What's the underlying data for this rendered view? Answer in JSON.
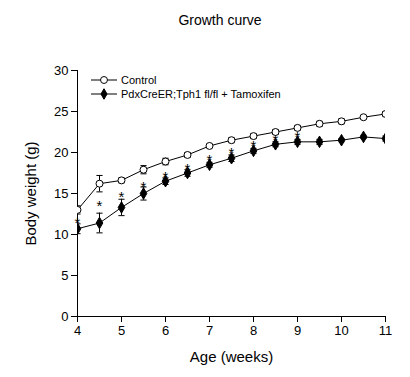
{
  "chart_data": {
    "type": "line",
    "title": "Growth curve",
    "x_label": "Age (weeks)",
    "y_label": "Body weight (g)",
    "x": [
      4,
      4.5,
      5,
      5.5,
      6,
      6.5,
      7,
      7.5,
      8,
      8.5,
      9,
      9.5,
      10,
      10.5,
      11
    ],
    "series": [
      {
        "name": "Control",
        "color": "#000000",
        "marker": "open-circle",
        "values": [
          13.0,
          16.2,
          16.6,
          17.9,
          18.9,
          19.7,
          20.8,
          21.5,
          22.0,
          22.5,
          23.0,
          23.5,
          23.8,
          24.3,
          24.7
        ],
        "errors": [
          0.5,
          1.0,
          0.3,
          0.5,
          0.4,
          0.3,
          0.2,
          0.3,
          0.3,
          0.3,
          0.3,
          0.3,
          0.3,
          0.2,
          0.3
        ]
      },
      {
        "name": "PdxCreER;Tph1 fl/fl + Tamoxifen",
        "color": "#000000",
        "marker": "diamond",
        "values": [
          10.7,
          11.4,
          13.3,
          15.0,
          16.5,
          17.5,
          18.5,
          19.3,
          20.2,
          21.0,
          21.3,
          21.3,
          21.5,
          21.9,
          21.7
        ],
        "errors": [
          0.6,
          1.2,
          1.0,
          0.8,
          0.4,
          0.4,
          0.3,
          0.4,
          0.3,
          0.3,
          0.3,
          0.3,
          0.2,
          0.2,
          0.3
        ]
      }
    ],
    "annotations": [
      {
        "text": "*",
        "x": 4,
        "y": 11.9
      },
      {
        "text": "*",
        "x": 4.5,
        "y": 14.0
      },
      {
        "text": "*",
        "x": 5,
        "y": 15.0
      },
      {
        "text": "*",
        "x": 5.5,
        "y": 16.3
      },
      {
        "text": "*",
        "x": 6,
        "y": 17.5
      },
      {
        "text": "*",
        "x": 6.5,
        "y": 18.5
      },
      {
        "text": "*",
        "x": 7,
        "y": 19.5
      },
      {
        "text": "*",
        "x": 7.5,
        "y": 20.4
      },
      {
        "text": "*",
        "x": 8,
        "y": 21.2
      },
      {
        "text": "*",
        "x": 8.5,
        "y": 22.0
      },
      {
        "text": "*",
        "x": 9,
        "y": 22.3
      }
    ],
    "xlim": [
      4,
      11
    ],
    "xticks": [
      4,
      5,
      6,
      7,
      8,
      9,
      10,
      11
    ],
    "ylim": [
      0,
      30
    ],
    "yticks": [
      0,
      5,
      10,
      15,
      20,
      25,
      30
    ],
    "grid": false,
    "legend": "top-left"
  }
}
